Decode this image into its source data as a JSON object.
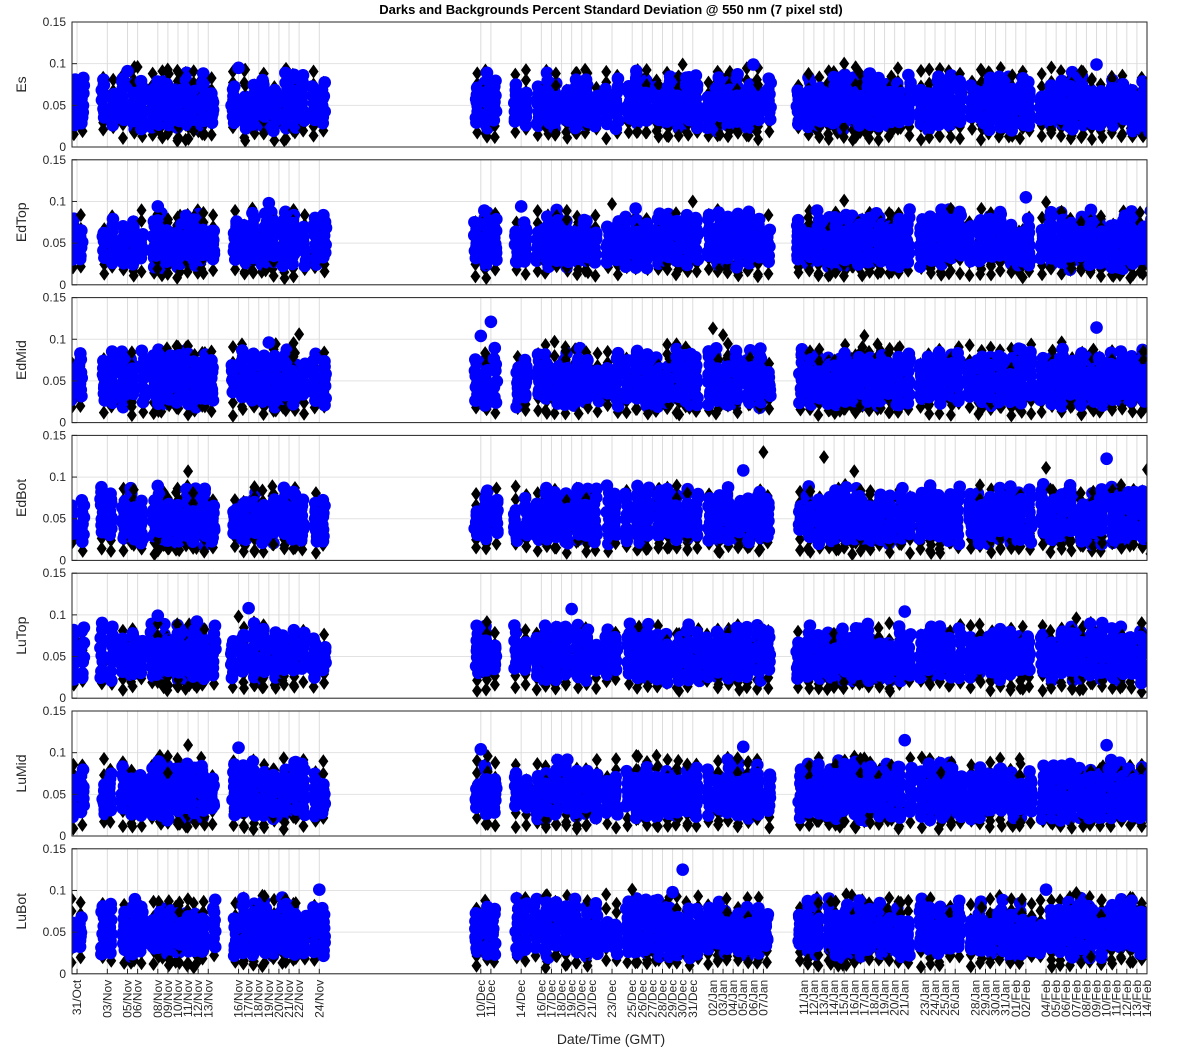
{
  "chart_data": {
    "type": "scatter",
    "title": "Darks and Backgrounds Percent Standard Deviation @ 550 nm (7 pixel std)",
    "xlabel": "Date/Time (GMT)",
    "ylim": [
      0,
      0.15
    ],
    "yticks": [
      0,
      0.05,
      0.1,
      0.15
    ],
    "ytick_labels": [
      "0",
      "0.05",
      "0.1",
      "0.15"
    ],
    "grid": true,
    "x_domain_days": [
      -0.5,
      106
    ],
    "x_reference": "day 0 = 31/Oct",
    "x_ticks": [
      {
        "day": 0,
        "label": "31/Oct"
      },
      {
        "day": 3,
        "label": "03/Nov"
      },
      {
        "day": 5,
        "label": "05/Nov"
      },
      {
        "day": 6,
        "label": "06/Nov"
      },
      {
        "day": 8,
        "label": "08/Nov"
      },
      {
        "day": 9,
        "label": "09/Nov"
      },
      {
        "day": 10,
        "label": "10/Nov"
      },
      {
        "day": 11,
        "label": "11/Nov"
      },
      {
        "day": 12,
        "label": "12/Nov"
      },
      {
        "day": 13,
        "label": "13/Nov"
      },
      {
        "day": 16,
        "label": "16/Nov"
      },
      {
        "day": 17,
        "label": "17/Nov"
      },
      {
        "day": 18,
        "label": "18/Nov"
      },
      {
        "day": 19,
        "label": "19/Nov"
      },
      {
        "day": 20,
        "label": "20/Nov"
      },
      {
        "day": 21,
        "label": "21/Nov"
      },
      {
        "day": 22,
        "label": "22/Nov"
      },
      {
        "day": 24,
        "label": "24/Nov"
      },
      {
        "day": 40,
        "label": "10/Dec"
      },
      {
        "day": 41,
        "label": "11/Dec"
      },
      {
        "day": 44,
        "label": "14/Dec"
      },
      {
        "day": 46,
        "label": "16/Dec"
      },
      {
        "day": 47,
        "label": "17/Dec"
      },
      {
        "day": 48,
        "label": "18/Dec"
      },
      {
        "day": 49,
        "label": "19/Dec"
      },
      {
        "day": 50,
        "label": "20/Dec"
      },
      {
        "day": 51,
        "label": "21/Dec"
      },
      {
        "day": 53,
        "label": "23/Dec"
      },
      {
        "day": 55,
        "label": "25/Dec"
      },
      {
        "day": 56,
        "label": "26/Dec"
      },
      {
        "day": 57,
        "label": "27/Dec"
      },
      {
        "day": 58,
        "label": "28/Dec"
      },
      {
        "day": 59,
        "label": "29/Dec"
      },
      {
        "day": 60,
        "label": "30/Dec"
      },
      {
        "day": 61,
        "label": "31/Dec"
      },
      {
        "day": 63,
        "label": "02/Jan"
      },
      {
        "day": 64,
        "label": "03/Jan"
      },
      {
        "day": 65,
        "label": "04/Jan"
      },
      {
        "day": 66,
        "label": "05/Jan"
      },
      {
        "day": 67,
        "label": "06/Jan"
      },
      {
        "day": 68,
        "label": "07/Jan"
      },
      {
        "day": 72,
        "label": "11/Jan"
      },
      {
        "day": 73,
        "label": "12/Jan"
      },
      {
        "day": 74,
        "label": "13/Jan"
      },
      {
        "day": 75,
        "label": "14/Jan"
      },
      {
        "day": 76,
        "label": "15/Jan"
      },
      {
        "day": 77,
        "label": "16/Jan"
      },
      {
        "day": 78,
        "label": "17/Jan"
      },
      {
        "day": 79,
        "label": "18/Jan"
      },
      {
        "day": 80,
        "label": "19/Jan"
      },
      {
        "day": 81,
        "label": "20/Jan"
      },
      {
        "day": 82,
        "label": "21/Jan"
      },
      {
        "day": 84,
        "label": "23/Jan"
      },
      {
        "day": 85,
        "label": "24/Jan"
      },
      {
        "day": 86,
        "label": "25/Jan"
      },
      {
        "day": 87,
        "label": "26/Jan"
      },
      {
        "day": 89,
        "label": "28/Jan"
      },
      {
        "day": 90,
        "label": "29/Jan"
      },
      {
        "day": 91,
        "label": "30/Jan"
      },
      {
        "day": 92,
        "label": "31/Jan"
      },
      {
        "day": 93,
        "label": "01/Feb"
      },
      {
        "day": 94,
        "label": "02/Feb"
      },
      {
        "day": 96,
        "label": "04/Feb"
      },
      {
        "day": 97,
        "label": "05/Feb"
      },
      {
        "day": 98,
        "label": "06/Feb"
      },
      {
        "day": 99,
        "label": "07/Feb"
      },
      {
        "day": 100,
        "label": "08/Feb"
      },
      {
        "day": 101,
        "label": "09/Feb"
      },
      {
        "day": 102,
        "label": "10/Feb"
      },
      {
        "day": 103,
        "label": "11/Feb"
      },
      {
        "day": 104,
        "label": "12/Feb"
      },
      {
        "day": 105,
        "label": "13/Feb"
      },
      {
        "day": 106,
        "label": "14/Feb"
      }
    ],
    "series_styles": [
      {
        "name": "Darks",
        "marker": "diamond",
        "color": "#000000"
      },
      {
        "name": "Backgrounds",
        "marker": "circle",
        "color": "#0000ff"
      }
    ],
    "panels": [
      {
        "ylabel": "Es",
        "values": {
          "black_range": [
            0.01,
            0.095
          ],
          "blue_range": [
            0.02,
            0.09
          ]
        },
        "outliers": [
          {
            "day": 6,
            "y": 0.096,
            "series": "black"
          },
          {
            "day": 5,
            "y": 0.091,
            "series": "blue"
          },
          {
            "day": 16,
            "y": 0.095,
            "series": "blue"
          },
          {
            "day": 60,
            "y": 0.099,
            "series": "black"
          },
          {
            "day": 67,
            "y": 0.099,
            "series": "blue"
          },
          {
            "day": 76,
            "y": 0.1,
            "series": "black"
          },
          {
            "day": 101,
            "y": 0.099,
            "series": "blue"
          }
        ]
      },
      {
        "ylabel": "EdTop",
        "values": {
          "black_range": [
            0.01,
            0.09
          ],
          "blue_range": [
            0.02,
            0.09
          ]
        },
        "outliers": [
          {
            "day": 8,
            "y": 0.094,
            "series": "blue"
          },
          {
            "day": 19,
            "y": 0.098,
            "series": "blue"
          },
          {
            "day": 44,
            "y": 0.094,
            "series": "blue"
          },
          {
            "day": 53,
            "y": 0.097,
            "series": "black"
          },
          {
            "day": 61,
            "y": 0.1,
            "series": "black"
          },
          {
            "day": 76,
            "y": 0.101,
            "series": "black"
          },
          {
            "day": 94,
            "y": 0.105,
            "series": "blue"
          },
          {
            "day": 96,
            "y": 0.099,
            "series": "black"
          }
        ]
      },
      {
        "ylabel": "EdMid",
        "values": {
          "black_range": [
            0.01,
            0.095
          ],
          "blue_range": [
            0.02,
            0.09
          ]
        },
        "outliers": [
          {
            "day": 22,
            "y": 0.106,
            "series": "black"
          },
          {
            "day": 19,
            "y": 0.096,
            "series": "blue"
          },
          {
            "day": 41,
            "y": 0.121,
            "series": "blue"
          },
          {
            "day": 40,
            "y": 0.104,
            "series": "blue"
          },
          {
            "day": 63,
            "y": 0.113,
            "series": "black"
          },
          {
            "day": 64,
            "y": 0.105,
            "series": "black"
          },
          {
            "day": 78,
            "y": 0.104,
            "series": "black"
          },
          {
            "day": 101,
            "y": 0.114,
            "series": "blue"
          }
        ]
      },
      {
        "ylabel": "EdBot",
        "values": {
          "black_range": [
            0.01,
            0.09
          ],
          "blue_range": [
            0.02,
            0.09
          ]
        },
        "outliers": [
          {
            "day": 11,
            "y": 0.107,
            "series": "black"
          },
          {
            "day": 66,
            "y": 0.108,
            "series": "blue"
          },
          {
            "day": 68,
            "y": 0.13,
            "series": "black"
          },
          {
            "day": 74,
            "y": 0.124,
            "series": "black"
          },
          {
            "day": 77,
            "y": 0.107,
            "series": "black"
          },
          {
            "day": 96,
            "y": 0.111,
            "series": "black"
          },
          {
            "day": 102,
            "y": 0.122,
            "series": "blue"
          },
          {
            "day": 106,
            "y": 0.109,
            "series": "black"
          }
        ]
      },
      {
        "ylabel": "LuTop",
        "values": {
          "black_range": [
            0.01,
            0.09
          ],
          "blue_range": [
            0.02,
            0.09
          ]
        },
        "outliers": [
          {
            "day": 8,
            "y": 0.099,
            "series": "blue"
          },
          {
            "day": 16,
            "y": 0.098,
            "series": "black"
          },
          {
            "day": 17,
            "y": 0.108,
            "series": "blue"
          },
          {
            "day": 49,
            "y": 0.107,
            "series": "blue"
          },
          {
            "day": 82,
            "y": 0.104,
            "series": "blue"
          },
          {
            "day": 99,
            "y": 0.096,
            "series": "black"
          }
        ]
      },
      {
        "ylabel": "LuMid",
        "values": {
          "black_range": [
            0.01,
            0.095
          ],
          "blue_range": [
            0.02,
            0.09
          ]
        },
        "outliers": [
          {
            "day": 11,
            "y": 0.109,
            "series": "black"
          },
          {
            "day": 16,
            "y": 0.106,
            "series": "blue"
          },
          {
            "day": 40,
            "y": 0.104,
            "series": "blue"
          },
          {
            "day": 66,
            "y": 0.107,
            "series": "blue"
          },
          {
            "day": 82,
            "y": 0.115,
            "series": "blue"
          },
          {
            "day": 102,
            "y": 0.109,
            "series": "blue"
          }
        ]
      },
      {
        "ylabel": "LuBot",
        "values": {
          "black_range": [
            0.01,
            0.095
          ],
          "blue_range": [
            0.02,
            0.09
          ]
        },
        "outliers": [
          {
            "day": 24,
            "y": 0.101,
            "series": "blue"
          },
          {
            "day": 55,
            "y": 0.101,
            "series": "black"
          },
          {
            "day": 60,
            "y": 0.125,
            "series": "blue"
          },
          {
            "day": 59,
            "y": 0.098,
            "series": "blue"
          },
          {
            "day": 96,
            "y": 0.101,
            "series": "blue"
          },
          {
            "day": 99,
            "y": 0.097,
            "series": "black"
          }
        ]
      }
    ]
  }
}
